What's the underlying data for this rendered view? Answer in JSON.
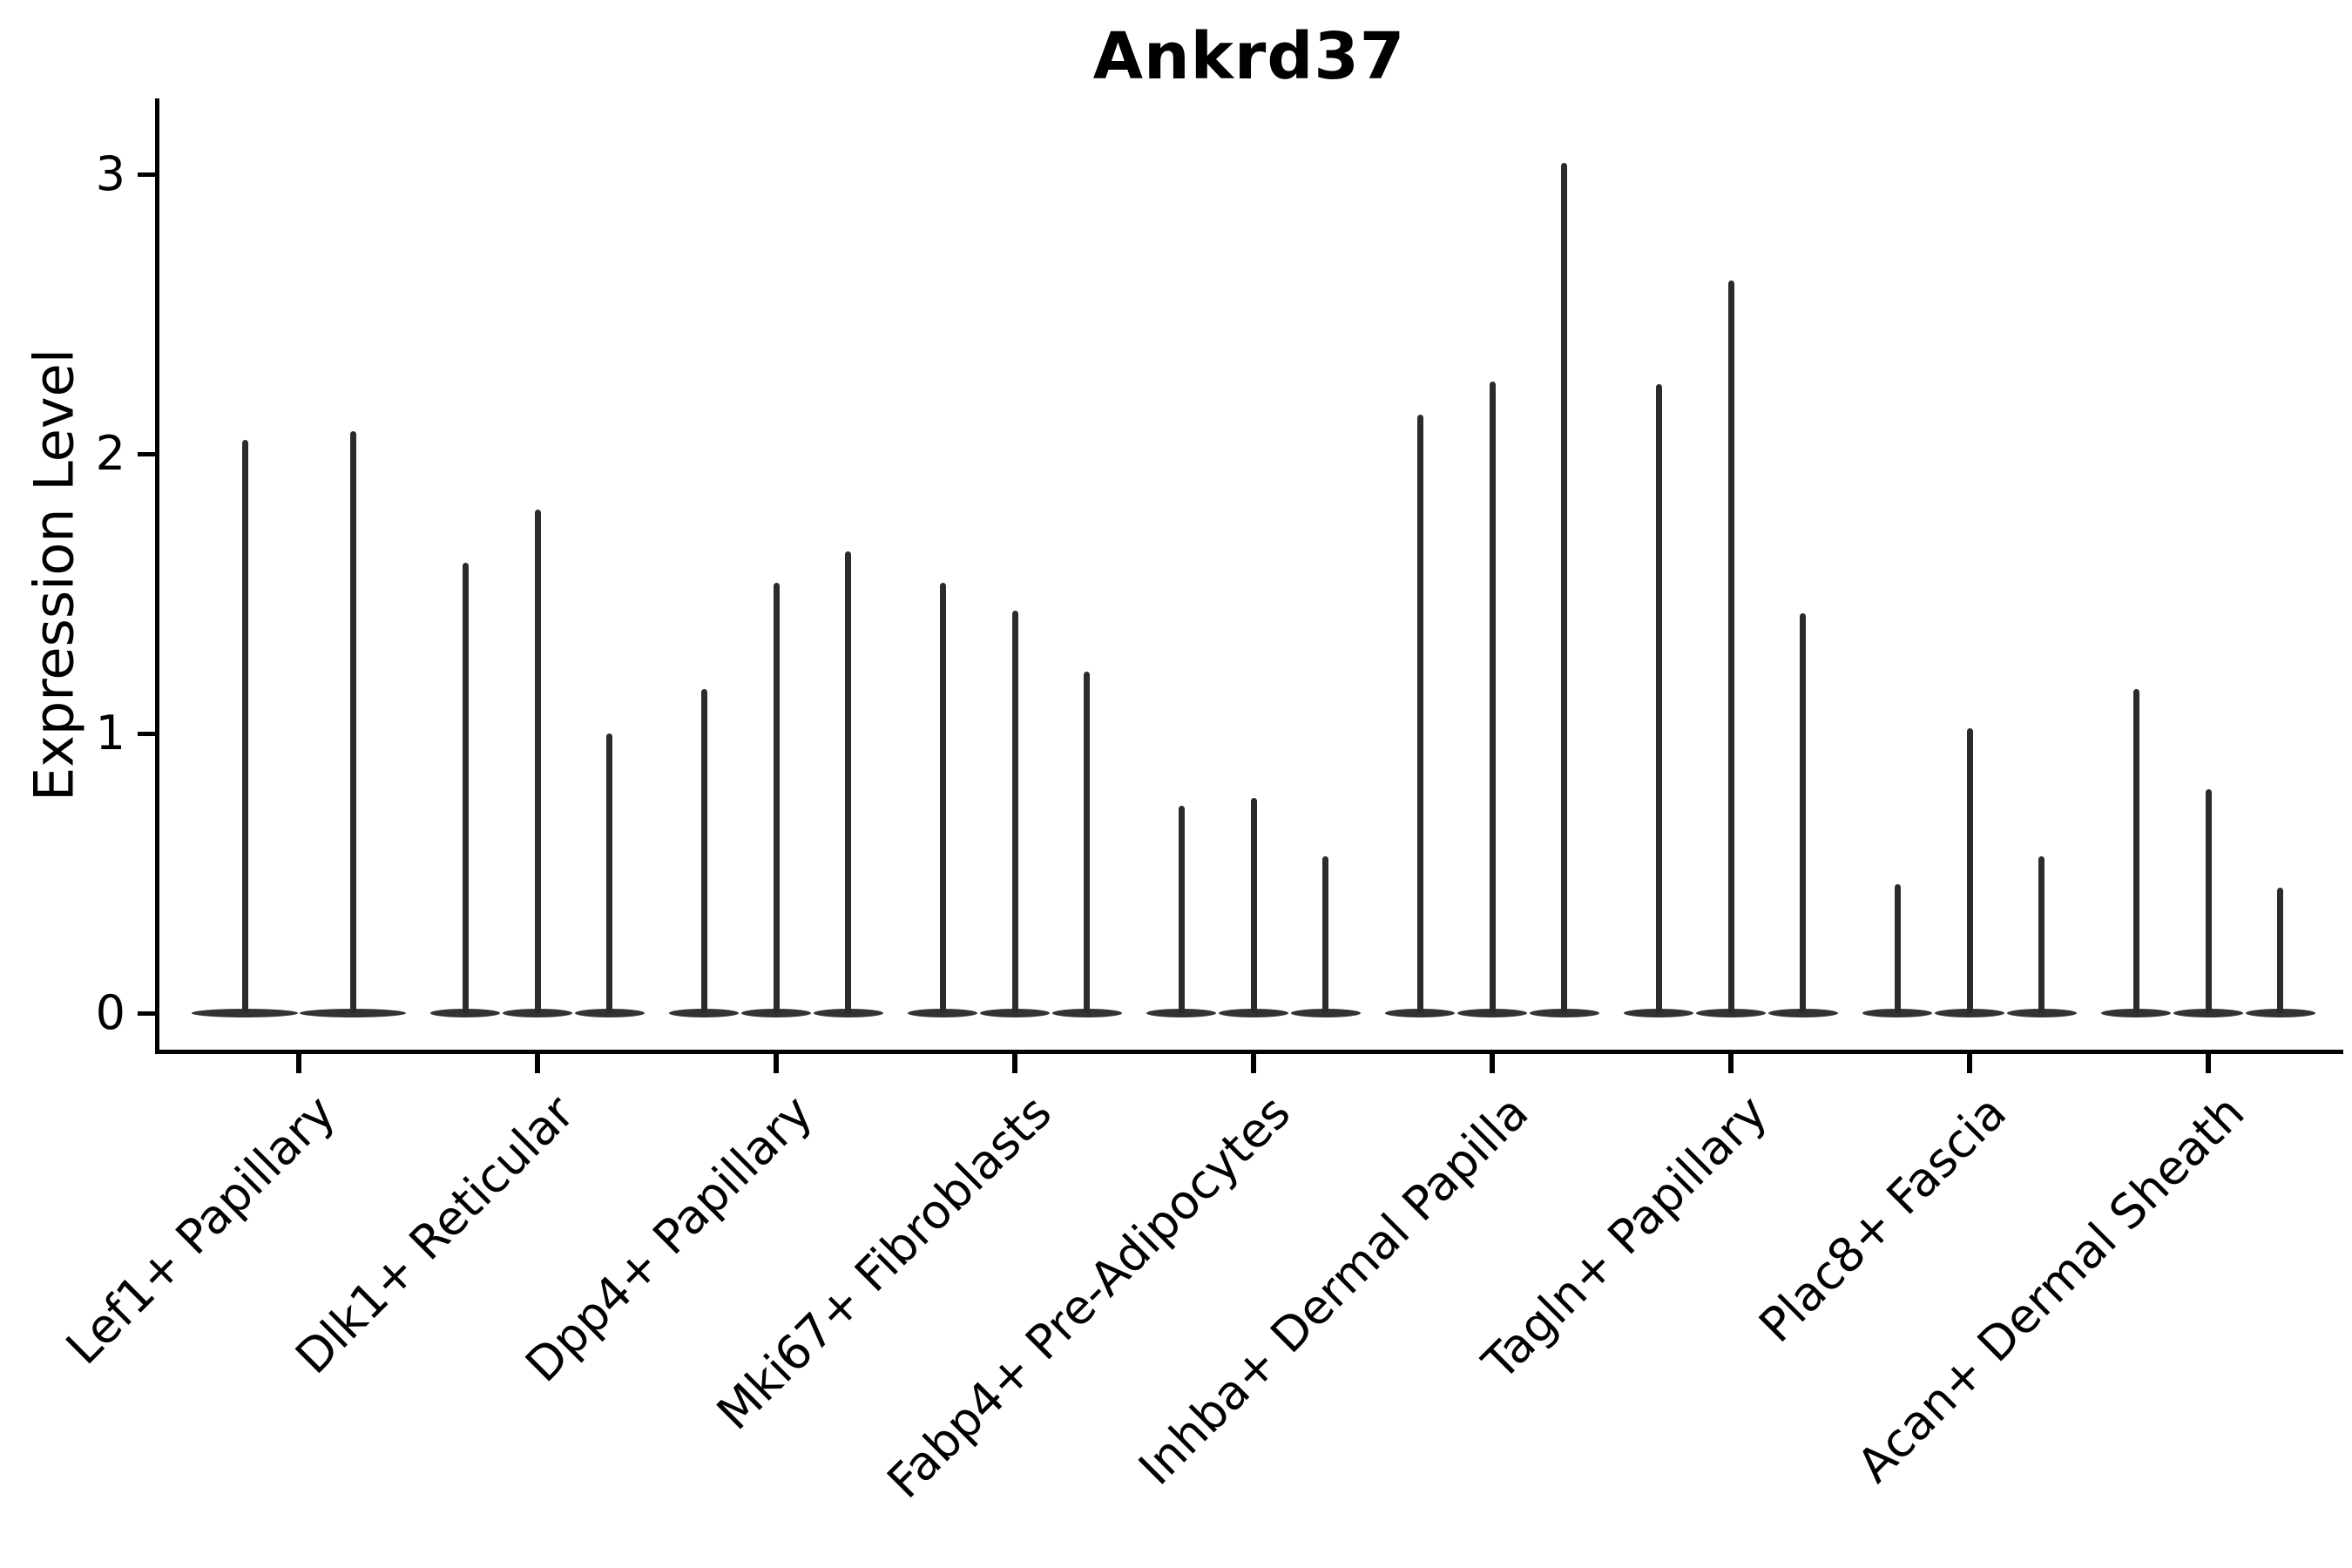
{
  "chart_data": {
    "type": "violin",
    "title": "Ankrd37",
    "xlabel": "",
    "ylabel": "Expression Level",
    "yticks": [
      0,
      1,
      2,
      3
    ],
    "ylim": [
      -0.15,
      3.27
    ],
    "grid": false,
    "legend": null,
    "ink_color": "#2b2b2b",
    "background": "#ffffff",
    "note": "needle-style violins: density mass concentrated at 0 (flat wide base), thin spike up to the maximum expression value",
    "groups": [
      {
        "category": "Lef1+ Papillary",
        "violin_max": [
          2.05,
          2.08
        ]
      },
      {
        "category": "Dlk1+ Reticular",
        "violin_max": [
          1.61,
          1.8,
          1.0
        ]
      },
      {
        "category": "Dpp4+ Papillary",
        "violin_max": [
          1.16,
          1.54,
          1.65
        ]
      },
      {
        "category": "Mki67+ Fibroblasts",
        "violin_max": [
          1.54,
          1.44,
          1.22
        ]
      },
      {
        "category": "Fabp4+ Pre-Adipocytes",
        "violin_max": [
          0.74,
          0.77,
          0.56
        ]
      },
      {
        "category": "Inhba+ Dermal Papilla",
        "violin_max": [
          2.14,
          2.26,
          3.04
        ]
      },
      {
        "category": "Tagln+ Papillary",
        "violin_max": [
          2.25,
          2.62,
          1.43
        ]
      },
      {
        "category": "Plac8+ Fascia",
        "violin_max": [
          0.46,
          1.02,
          0.56
        ]
      },
      {
        "category": "Acan+ Dermal Sheath",
        "violin_max": [
          1.16,
          0.8,
          0.45
        ]
      }
    ]
  }
}
